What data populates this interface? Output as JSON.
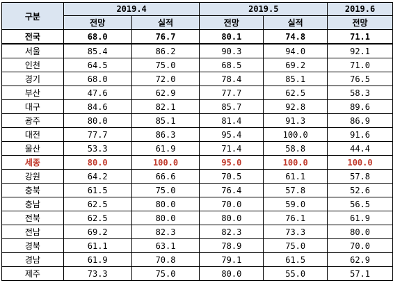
{
  "header": {
    "gubun": "구분",
    "periods": [
      "2019.4",
      "2019.5",
      "2019.6"
    ],
    "sub": [
      "전망",
      "실적",
      "전망",
      "실적",
      "전망"
    ]
  },
  "rows": [
    {
      "region": "전국",
      "v": [
        "68.0",
        "76.7",
        "80.1",
        "74.8",
        "71.1"
      ]
    },
    {
      "region": "서울",
      "v": [
        "85.4",
        "86.2",
        "90.3",
        "94.0",
        "92.1"
      ]
    },
    {
      "region": "인천",
      "v": [
        "64.5",
        "75.0",
        "68.5",
        "69.2",
        "71.0"
      ]
    },
    {
      "region": "경기",
      "v": [
        "68.0",
        "72.0",
        "78.4",
        "85.1",
        "76.5"
      ]
    },
    {
      "region": "부산",
      "v": [
        "47.6",
        "62.9",
        "77.7",
        "62.5",
        "58.3"
      ]
    },
    {
      "region": "대구",
      "v": [
        "84.6",
        "82.1",
        "85.7",
        "92.8",
        "89.6"
      ]
    },
    {
      "region": "광주",
      "v": [
        "80.0",
        "85.1",
        "81.4",
        "91.3",
        "86.9"
      ]
    },
    {
      "region": "대전",
      "v": [
        "77.7",
        "86.3",
        "95.4",
        "100.0",
        "91.6"
      ]
    },
    {
      "region": "울산",
      "v": [
        "53.3",
        "61.9",
        "71.4",
        "58.8",
        "44.4"
      ]
    },
    {
      "region": "세종",
      "v": [
        "80.0",
        "100.0",
        "95.0",
        "100.0",
        "100.0"
      ]
    },
    {
      "region": "강원",
      "v": [
        "64.2",
        "66.6",
        "70.5",
        "61.1",
        "57.8"
      ]
    },
    {
      "region": "충북",
      "v": [
        "61.5",
        "75.0",
        "76.4",
        "57.8",
        "52.6"
      ]
    },
    {
      "region": "충남",
      "v": [
        "62.5",
        "80.0",
        "70.0",
        "59.0",
        "56.5"
      ]
    },
    {
      "region": "전북",
      "v": [
        "62.5",
        "80.0",
        "80.0",
        "76.1",
        "61.9"
      ]
    },
    {
      "region": "전남",
      "v": [
        "69.2",
        "82.3",
        "82.3",
        "73.3",
        "80.0"
      ]
    },
    {
      "region": "경북",
      "v": [
        "61.1",
        "63.1",
        "78.9",
        "75.0",
        "70.0"
      ]
    },
    {
      "region": "경남",
      "v": [
        "61.9",
        "70.8",
        "79.1",
        "61.5",
        "62.9"
      ]
    },
    {
      "region": "제주",
      "v": [
        "73.3",
        "75.0",
        "80.0",
        "55.0",
        "57.1"
      ]
    }
  ],
  "colors": {
    "header_bg": "#dbe5f1",
    "highlight_text": "#c0392b"
  }
}
